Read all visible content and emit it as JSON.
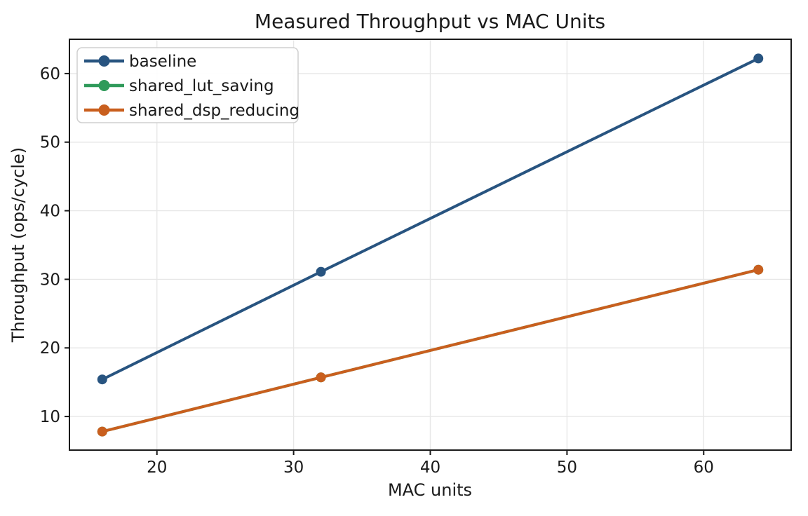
{
  "chart_data": {
    "type": "line",
    "title": "Measured Throughput vs MAC Units",
    "xlabel": "MAC units",
    "ylabel": "Throughput (ops/cycle)",
    "x": [
      16,
      32,
      64
    ],
    "series": [
      {
        "name": "baseline",
        "color": "#285480",
        "values": [
          15.4,
          31.1,
          62.2
        ]
      },
      {
        "name": "shared_lut_saving",
        "color": "#2f9a5a",
        "values": [
          7.8,
          15.7,
          31.4
        ]
      },
      {
        "name": "shared_dsp_reducing",
        "color": "#c95f1e",
        "values": [
          7.8,
          15.7,
          31.4
        ]
      }
    ],
    "xticks": [
      20,
      30,
      40,
      50,
      60
    ],
    "yticks": [
      10,
      20,
      30,
      40,
      50,
      60
    ],
    "xlim": [
      13.6,
      66.4
    ],
    "ylim": [
      5.1,
      65.0
    ],
    "grid": true,
    "legend_position": "upper left",
    "colors": {
      "grid": "#e7e7e7",
      "spine": "#1a1a1a",
      "tick": "#1a1a1a",
      "legend_border": "#cfcfcf",
      "background": "#ffffff"
    }
  }
}
